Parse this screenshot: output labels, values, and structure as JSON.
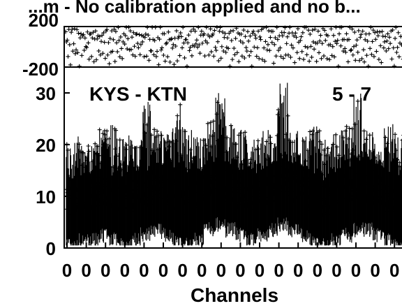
{
  "chart_data": [
    {
      "type": "scatter",
      "title": "...m - No calibration applied and no b...",
      "ylim": [
        -200,
        200
      ],
      "yticks": [
        "200",
        "-200"
      ],
      "markers": "plus",
      "series": [
        {
          "x_start": 1,
          "x_end": 512,
          "values": [
            150,
            40,
            120,
            -60,
            180,
            20,
            -120,
            90,
            160,
            -30,
            60,
            140,
            -90,
            30,
            170,
            -20,
            110,
            -150,
            80,
            130,
            -40,
            170,
            60,
            -100,
            140,
            10,
            -70,
            190,
            50,
            -130,
            100,
            160,
            -50,
            20,
            150,
            -110,
            70,
            180,
            -80,
            40,
            130,
            -20,
            160,
            -140,
            90,
            60,
            -60,
            175,
            30,
            -100,
            120,
            150,
            -30,
            80,
            -160,
            140,
            10,
            170,
            -70,
            50,
            110,
            -120,
            160,
            40,
            -40,
            185,
            70,
            -90,
            130,
            20,
            -150,
            100,
            160,
            -10,
            60,
            140,
            -80,
            30,
            170,
            -50
          ]
        }
      ]
    },
    {
      "type": "scatter",
      "xlabel": "Channels",
      "ylim": [
        0,
        35
      ],
      "yticks": [
        "0",
        "10",
        "20",
        "30"
      ],
      "xtick_labels": [
        "0",
        "0",
        "0",
        "0",
        "0",
        "0",
        "0",
        "0",
        "0",
        "0",
        "0",
        "0",
        "0",
        "0",
        "0",
        "0",
        "0",
        "0"
      ],
      "annotations": [
        "KYS - KTN",
        "5 - 7"
      ],
      "markers": "plus",
      "series": [
        {
          "x_start": 1,
          "x_end": 512,
          "envelope": {
            "mean": [
              9,
              10,
              10,
              11,
              10,
              9,
              10,
              11,
              12,
              11,
              10,
              9,
              10,
              12,
              13,
              12,
              11,
              10,
              11,
              12,
              13,
              12,
              11,
              10,
              9,
              10,
              11,
              12,
              12,
              11,
              10,
              9
            ],
            "max": [
              21,
              22,
              21,
              23,
              24,
              22,
              21,
              31,
              23,
              22,
              30,
              24,
              22,
              25,
              30,
              24,
              23,
              21,
              23,
              24,
              32,
              23,
              22,
              24,
              21,
              22,
              24,
              30,
              23,
              22,
              24,
              22
            ]
          }
        }
      ]
    }
  ],
  "colors": {
    "ink": "#000000",
    "background": "#ffffff"
  }
}
